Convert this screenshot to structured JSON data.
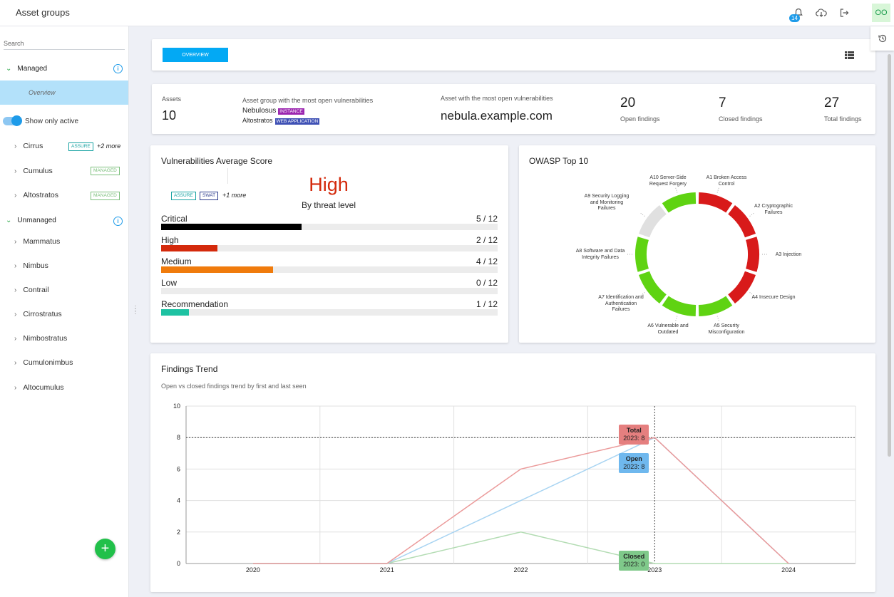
{
  "topbar": {
    "title": "Asset groups",
    "notification_count": "14",
    "avatar_initials": "OO",
    "icons": [
      "bell-icon",
      "cloud-download-icon",
      "logout-icon",
      "history-icon"
    ]
  },
  "sidebar": {
    "search_label": "Search",
    "managed": {
      "label": "Managed",
      "overview_label": "Overview"
    },
    "show_only_active_label": "Show only active",
    "managed_items": [
      {
        "label": "Cirrus",
        "tag": "ASSURE",
        "more": "+2 more"
      },
      {
        "label": "Cumulus",
        "tag": "MANAGED"
      },
      {
        "label": "Altostratos",
        "tag": "MANAGED"
      }
    ],
    "unmanaged": {
      "label": "Unmanaged"
    },
    "unmanaged_items": [
      "Mammatus",
      "Nimbus",
      "Contrail",
      "Cirrostratus",
      "Nimbostratus",
      "Cumulonimbus",
      "Altocumulus"
    ],
    "add_button": "+"
  },
  "toolbar": {
    "overview_button": "OVERVIEW"
  },
  "summary": {
    "assets_label": "Assets",
    "assets_value": "10",
    "group_label": "Asset group with the most open vulnerabilities",
    "group_1_name": "Nebulosus",
    "group_1_pill": "INSTANCE",
    "group_2_name": "Altostratos",
    "group_2_pill": "WEB APPLICATION",
    "asset_label": "Asset with the most open vulnerabilities",
    "asset_value": "nebula.example.com",
    "open_value": "20",
    "open_label": "Open findings",
    "closed_value": "7",
    "closed_label": "Closed findings",
    "total_value": "27",
    "total_label": "Total findings"
  },
  "score": {
    "title": "Vulnerabilities Average Score",
    "tags": [
      "ASSURE",
      "SWAT"
    ],
    "more": "+1 more",
    "level": "High",
    "subtitle": "By threat level",
    "levels": [
      {
        "label": "Critical",
        "count": "5 / 12",
        "value": 5,
        "color": "#000000"
      },
      {
        "label": "High",
        "count": "2 / 12",
        "value": 2,
        "color": "#d42a0c"
      },
      {
        "label": "Medium",
        "count": "4 / 12",
        "value": 4,
        "color": "#f07b0c"
      },
      {
        "label": "Low",
        "count": "0 / 12",
        "value": 0,
        "color": "#3a8cd0"
      },
      {
        "label": "Recommendation",
        "count": "1 / 12",
        "value": 1,
        "color": "#1ec2a2"
      }
    ],
    "total": 12
  },
  "owasp": {
    "title": "OWASP Top 10",
    "segments": [
      {
        "label": "A1 Broken Access Control",
        "color": "#d81a1a"
      },
      {
        "label": "A2 Cryptographic Failures",
        "color": "#d81a1a"
      },
      {
        "label": "A3 Injection",
        "color": "#d81a1a"
      },
      {
        "label": "A4 Insecure Design",
        "color": "#d81a1a"
      },
      {
        "label": "A5 Security Misconfiguration",
        "color": "#5fd312"
      },
      {
        "label": "A6 Vulnerable and Outdated",
        "color": "#5fd312"
      },
      {
        "label": "A7 Identification and Authentication Failures",
        "color": "#5fd312"
      },
      {
        "label": "A8 Software and Data Integrity Failures",
        "color": "#5fd312"
      },
      {
        "label": "A9 Security Logging and Monitoring Failures",
        "color": "#e0e0e0"
      },
      {
        "label": "A10 Server-Side Request Forgery",
        "color": "#5fd312"
      }
    ]
  },
  "trend": {
    "title": "Findings Trend",
    "subtitle": "Open vs closed findings trend by first and last seen",
    "tooltips": [
      {
        "name": "Total",
        "value": "2023: 8"
      },
      {
        "name": "Open",
        "value": "2023: 8"
      },
      {
        "name": "Closed",
        "value": "2023: 0"
      }
    ]
  },
  "chart_data": {
    "type": "line",
    "title": "Findings Trend",
    "x": [
      "2020",
      "2021",
      "2022",
      "2023",
      "2024"
    ],
    "ylim": [
      0,
      10
    ],
    "yticks": [
      "0",
      "2",
      "4",
      "6",
      "8",
      "10"
    ],
    "series": [
      {
        "name": "Total",
        "values": [
          0,
          0,
          6,
          8,
          0
        ],
        "color": "#eb9a9a"
      },
      {
        "name": "Open",
        "values": [
          0,
          0,
          4,
          8,
          0
        ],
        "color": "#a8d4f2"
      },
      {
        "name": "Closed",
        "values": [
          0,
          0,
          2,
          0,
          0
        ],
        "color": "#b3dcb3"
      }
    ],
    "grid": true
  }
}
